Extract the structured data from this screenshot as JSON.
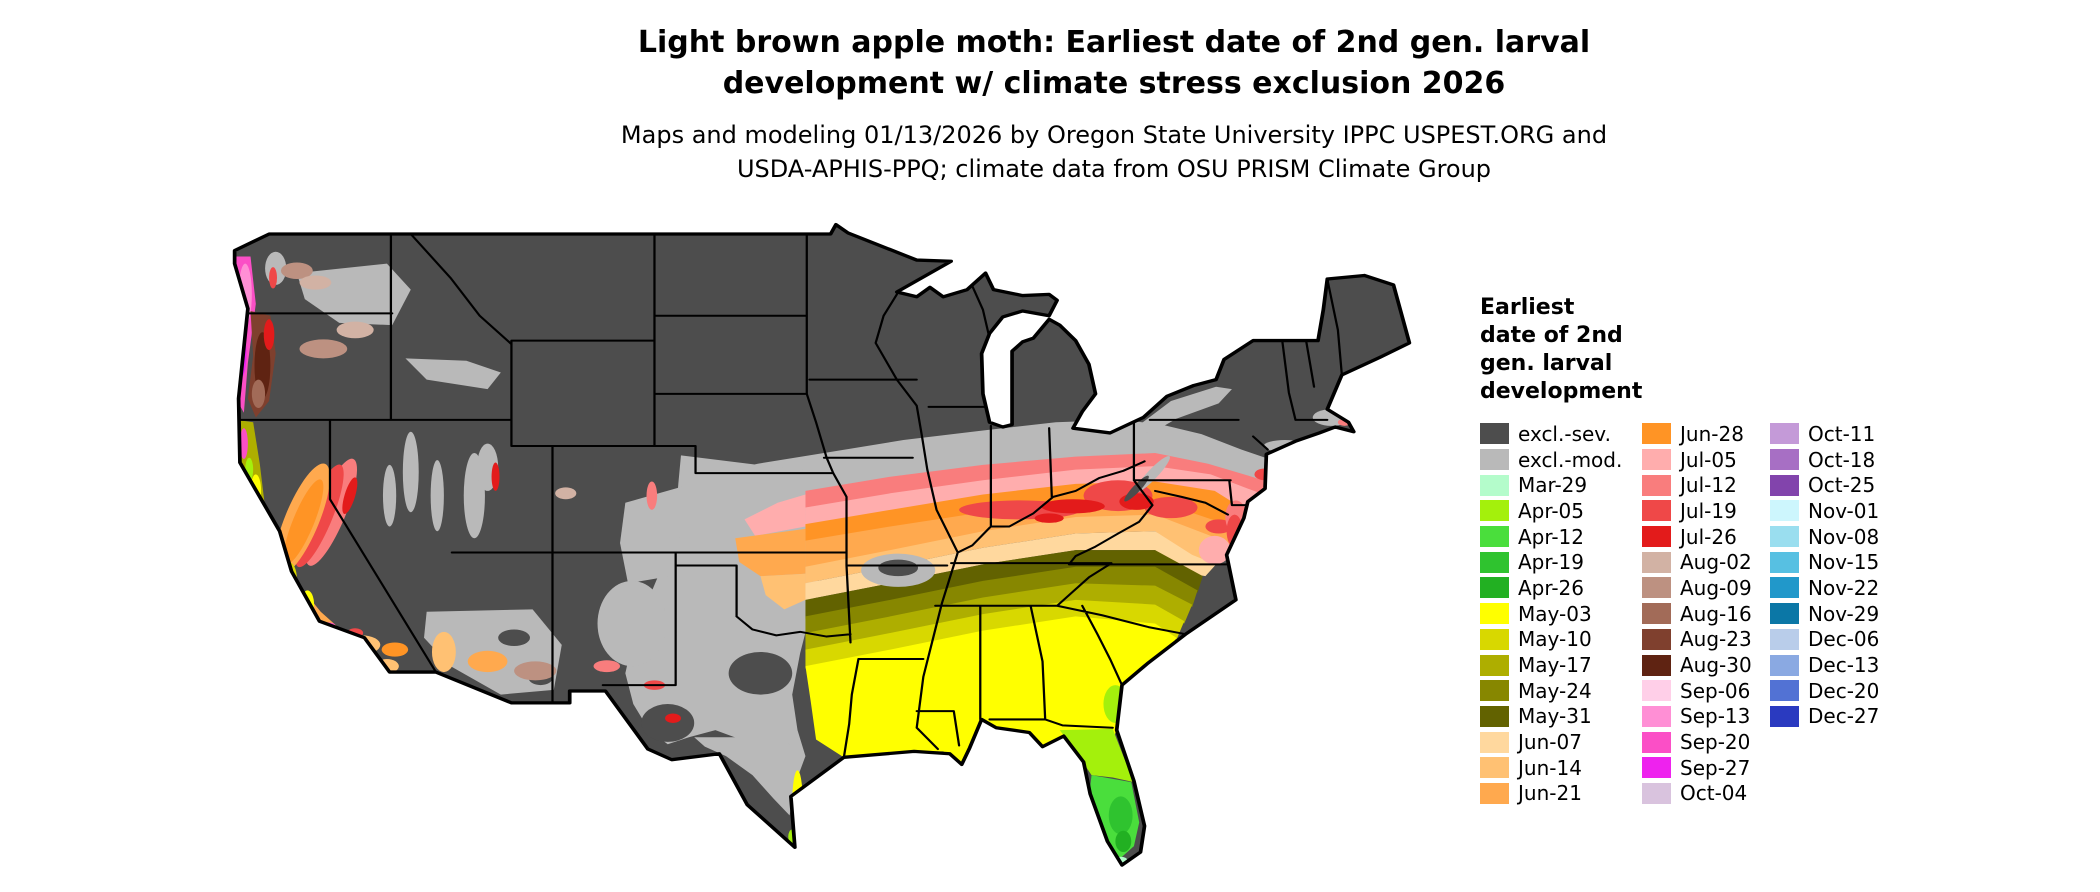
{
  "header": {
    "title_line1": "Light brown apple moth: Earliest date of 2nd gen. larval",
    "title_line2": "development w/ climate stress exclusion 2026",
    "subtitle_line1": "Maps and modeling 01/13/2026 by Oregon State University IPPC USPEST.ORG and",
    "subtitle_line2": "USDA-APHIS-PPQ; climate data from OSU PRISM Climate Group"
  },
  "legend": {
    "title_lines": [
      "Earliest",
      "date of 2nd",
      "gen. larval",
      "development"
    ],
    "columns": [
      {
        "entries": [
          {
            "label": "excl.-sev.",
            "color_key": "excl_sev"
          },
          {
            "label": "excl.-mod.",
            "color_key": "excl_mod"
          },
          {
            "label": "Mar-29",
            "color_key": "mar29"
          },
          {
            "label": "Apr-05",
            "color_key": "apr05"
          },
          {
            "label": "Apr-12",
            "color_key": "apr12"
          },
          {
            "label": "Apr-19",
            "color_key": "apr19"
          },
          {
            "label": "Apr-26",
            "color_key": "apr26"
          },
          {
            "label": "May-03",
            "color_key": "may03"
          },
          {
            "label": "May-10",
            "color_key": "may10"
          },
          {
            "label": "May-17",
            "color_key": "may17"
          },
          {
            "label": "May-24",
            "color_key": "may24"
          },
          {
            "label": "May-31",
            "color_key": "may31"
          },
          {
            "label": "Jun-07",
            "color_key": "jun07"
          },
          {
            "label": "Jun-14",
            "color_key": "jun14"
          },
          {
            "label": "Jun-21",
            "color_key": "jun21"
          }
        ]
      },
      {
        "entries": [
          {
            "label": "Jun-28",
            "color_key": "jun28"
          },
          {
            "label": "Jul-05",
            "color_key": "jul05"
          },
          {
            "label": "Jul-12",
            "color_key": "jul12"
          },
          {
            "label": "Jul-19",
            "color_key": "jul19"
          },
          {
            "label": "Jul-26",
            "color_key": "jul26"
          },
          {
            "label": "Aug-02",
            "color_key": "aug02"
          },
          {
            "label": "Aug-09",
            "color_key": "aug09"
          },
          {
            "label": "Aug-16",
            "color_key": "aug16"
          },
          {
            "label": "Aug-23",
            "color_key": "aug23"
          },
          {
            "label": "Aug-30",
            "color_key": "aug30"
          },
          {
            "label": "Sep-06",
            "color_key": "sep06"
          },
          {
            "label": "Sep-13",
            "color_key": "sep13"
          },
          {
            "label": "Sep-20",
            "color_key": "sep20"
          },
          {
            "label": "Sep-27",
            "color_key": "sep27"
          },
          {
            "label": "Oct-04",
            "color_key": "oct04"
          }
        ]
      },
      {
        "entries": [
          {
            "label": "Oct-11",
            "color_key": "oct11"
          },
          {
            "label": "Oct-18",
            "color_key": "oct18"
          },
          {
            "label": "Oct-25",
            "color_key": "oct25"
          },
          {
            "label": "Nov-01",
            "color_key": "nov01"
          },
          {
            "label": "Nov-08",
            "color_key": "nov08"
          },
          {
            "label": "Nov-15",
            "color_key": "nov15"
          },
          {
            "label": "Nov-22",
            "color_key": "nov22"
          },
          {
            "label": "Nov-29",
            "color_key": "nov29"
          },
          {
            "label": "Dec-06",
            "color_key": "dec06"
          },
          {
            "label": "Dec-13",
            "color_key": "dec13"
          },
          {
            "label": "Dec-20",
            "color_key": "dec20"
          },
          {
            "label": "Dec-27",
            "color_key": "dec27"
          }
        ]
      }
    ]
  },
  "colors": {
    "excl_sev": "#4d4d4d",
    "excl_mod": "#b9b9b9",
    "mar29": "#b4fccb",
    "apr05": "#a4f00c",
    "apr12": "#4ade3c",
    "apr19": "#2fc32f",
    "apr26": "#22b022",
    "may03": "#ffff00",
    "may10": "#d8d800",
    "may17": "#aeae00",
    "may24": "#878700",
    "may31": "#626200",
    "jun07": "#ffd89e",
    "jun14": "#ffc173",
    "jun21": "#ffa94e",
    "jun28": "#ff9425",
    "jul05": "#ffadad",
    "jul12": "#f97d7d",
    "jul19": "#ef4848",
    "jul26": "#e31b1b",
    "aug02": "#d2b2a4",
    "aug09": "#bd9181",
    "aug16": "#a26b58",
    "aug23": "#7f402e",
    "aug30": "#5f2312",
    "sep06": "#ffcfe8",
    "sep13": "#ff8fd5",
    "sep20": "#fb4fc6",
    "sep27": "#ee22ee",
    "oct04": "#d9c3de",
    "oct11": "#c49ad8",
    "oct18": "#a76fc4",
    "oct25": "#8244ac",
    "nov01": "#cdf6fd",
    "nov08": "#9adeef",
    "nov15": "#57c0e2",
    "nov22": "#2198ca",
    "nov29": "#0b77a6",
    "dec06": "#b9cdea",
    "dec13": "#8aa9e2",
    "dec20": "#5272d4",
    "dec27": "#2a3ac0"
  }
}
